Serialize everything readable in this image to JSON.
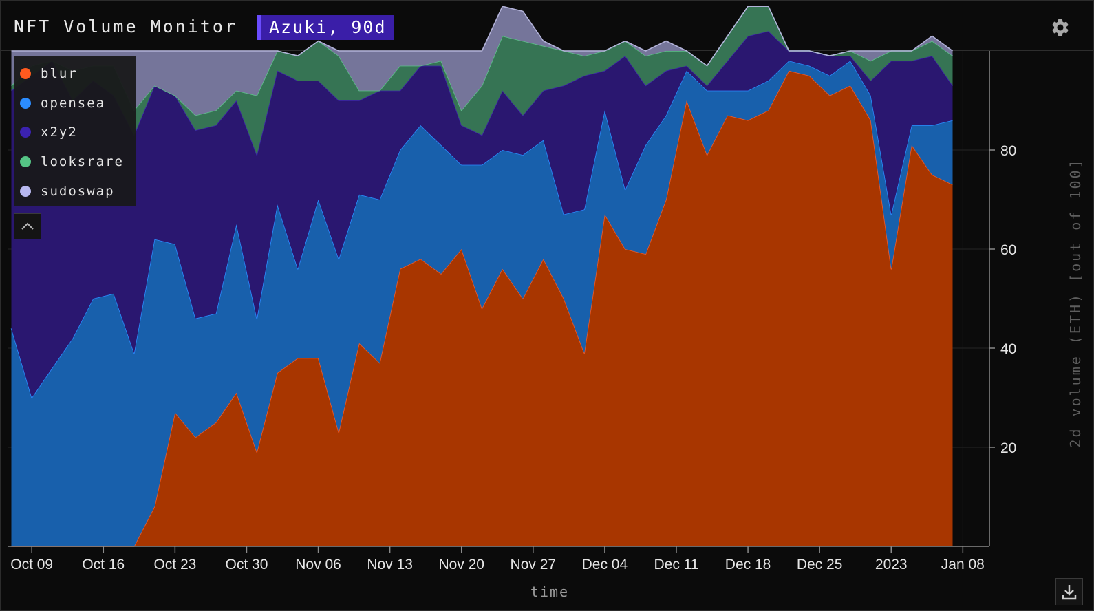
{
  "app": {
    "title": "NFT Volume Monitor",
    "dataset_label": "Azuki, 90d"
  },
  "icons": {
    "settings": "gear-icon",
    "collapse": "chevron-up-icon",
    "download": "download-icon"
  },
  "colors": {
    "background": "#0b0b0b",
    "accent": "#3a1ea8",
    "series": {
      "blur": {
        "fill": "#a83600",
        "line": "#f05a28",
        "dot": "#ff5a1f"
      },
      "opensea": {
        "fill": "#1860ac",
        "line": "#2b8cff",
        "dot": "#2b8cff"
      },
      "x2y2": {
        "fill": "#2a1770",
        "line": "#3c28a8",
        "dot": "#3b22b0"
      },
      "looksrare": {
        "fill": "#367454",
        "line": "#5ec08a",
        "dot": "#55c485"
      },
      "sudoswap": {
        "fill": "#75759a",
        "line": "#b2b2d8",
        "dot": "#b8b8f0"
      }
    }
  },
  "chart_data": {
    "type": "area",
    "stacked": true,
    "title": "",
    "xlabel": "time",
    "ylabel": "2d volume (ETH) [out of 100]",
    "y_axis_position": "right",
    "ylim": [
      0,
      100
    ],
    "yticks": [
      20,
      40,
      60,
      80
    ],
    "xlim_days": [
      -2.3,
      93.6
    ],
    "xticks": [
      {
        "label": "Oct 09",
        "day": 0
      },
      {
        "label": "Oct 16",
        "day": 7
      },
      {
        "label": "Oct 23",
        "day": 14
      },
      {
        "label": "Oct 30",
        "day": 21
      },
      {
        "label": "Nov 06",
        "day": 28
      },
      {
        "label": "Nov 13",
        "day": 35
      },
      {
        "label": "Nov 20",
        "day": 42
      },
      {
        "label": "Nov 27",
        "day": 49
      },
      {
        "label": "Dec 04",
        "day": 56
      },
      {
        "label": "Dec 11",
        "day": 63
      },
      {
        "label": "Dec 18",
        "day": 70
      },
      {
        "label": "Dec 25",
        "day": 77
      },
      {
        "label": "2023",
        "day": 84
      },
      {
        "label": "Jan 08",
        "day": 91
      }
    ],
    "legend": [
      "blur",
      "opensea",
      "x2y2",
      "looksrare",
      "sudoswap"
    ],
    "legend_position": "top-left",
    "x_start_day": -2,
    "x_step_days": 2,
    "series": [
      {
        "name": "blur",
        "values": [
          0,
          0,
          0,
          0,
          0,
          0,
          0,
          8,
          27,
          22,
          25,
          31,
          19,
          35,
          38,
          38,
          23,
          41,
          37,
          56,
          58,
          55,
          60,
          48,
          56,
          50,
          58,
          50,
          39,
          67,
          60,
          59,
          70,
          90,
          79,
          87,
          86,
          88,
          96,
          95,
          91,
          93,
          86,
          56,
          81,
          75,
          73
        ]
      },
      {
        "name": "opensea",
        "values": [
          44,
          30,
          36,
          42,
          50,
          51,
          39,
          54,
          34,
          24,
          22,
          34,
          27,
          34,
          18,
          32,
          35,
          30,
          33,
          24,
          27,
          26,
          17,
          29,
          24,
          29,
          24,
          17,
          29,
          21,
          12,
          22,
          17,
          6,
          13,
          5,
          6,
          6,
          2,
          2,
          4,
          5,
          5,
          11,
          4,
          10,
          13
        ]
      },
      {
        "name": "x2y2",
        "values": [
          48,
          65,
          62,
          48,
          44,
          40,
          44,
          31,
          30,
          38,
          38,
          25,
          33,
          27,
          38,
          24,
          32,
          19,
          22,
          12,
          12,
          16,
          8,
          6,
          12,
          8,
          10,
          26,
          27,
          8,
          27,
          12,
          9,
          1,
          1,
          6,
          11,
          10,
          2,
          3,
          4,
          1,
          3,
          31,
          13,
          14,
          7
        ]
      },
      {
        "name": "looksrare",
        "values": [
          1,
          2,
          0,
          6,
          3,
          6,
          5,
          0,
          0,
          3,
          3,
          2,
          12,
          4,
          5,
          8,
          9,
          2,
          0,
          5,
          0,
          1,
          3,
          10,
          11,
          15,
          9,
          7,
          4,
          4,
          3,
          6,
          4,
          3,
          4,
          5,
          6,
          5,
          0,
          0,
          0,
          1,
          4,
          2,
          2,
          3,
          6
        ]
      },
      {
        "name": "sudoswap",
        "values": [
          7,
          3,
          2,
          4,
          3,
          3,
          12,
          7,
          9,
          13,
          12,
          8,
          9,
          0,
          0,
          0,
          1,
          8,
          8,
          3,
          3,
          2,
          12,
          7,
          6,
          6,
          1,
          0,
          1,
          0,
          0,
          1,
          2,
          0,
          0,
          0,
          0,
          0,
          0,
          0,
          0,
          0,
          2,
          0,
          0,
          1,
          1
        ]
      }
    ]
  },
  "controls": {
    "collapse": "collapse legend",
    "download": "download"
  }
}
